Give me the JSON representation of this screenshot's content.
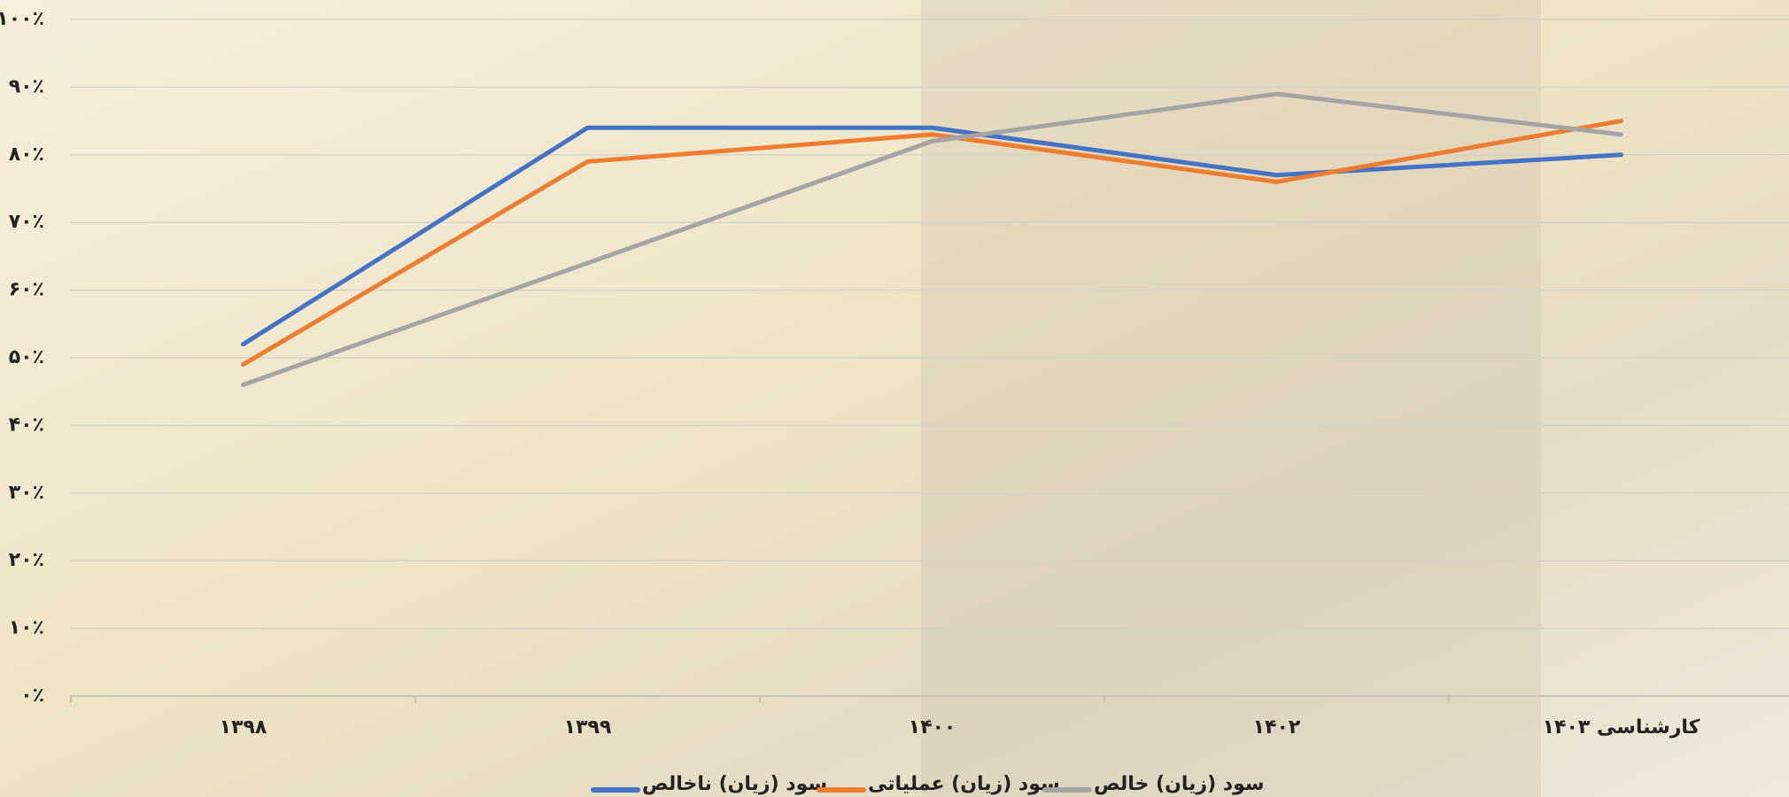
{
  "chart_data": {
    "type": "line",
    "categories": [
      "۱۳۹۸",
      "۱۳۹۹",
      "۱۴۰۰",
      "۱۴۰۲",
      "کارشناسی ۱۴۰۳"
    ],
    "series": [
      {
        "name": "سود (زیان) ناخالص",
        "color": "#4472c4",
        "values": [
          52,
          84,
          84,
          77,
          80
        ]
      },
      {
        "name": "سود (زیان) عملیاتی",
        "color": "#ed7d31",
        "values": [
          49,
          79,
          83,
          76,
          85
        ]
      },
      {
        "name": "سود (زیان) خالص",
        "color": "#a5a5a5",
        "values": [
          46,
          64,
          82,
          89,
          83
        ]
      }
    ],
    "ylim": [
      0,
      100
    ],
    "yticks": [
      {
        "value": 0,
        "label": "۰٪"
      },
      {
        "value": 10,
        "label": "۱۰٪"
      },
      {
        "value": 20,
        "label": "۲۰٪"
      },
      {
        "value": 30,
        "label": "۳۰٪"
      },
      {
        "value": 40,
        "label": "۴۰٪"
      },
      {
        "value": 50,
        "label": "۵۰٪"
      },
      {
        "value": 60,
        "label": "۶۰٪"
      },
      {
        "value": 70,
        "label": "۷۰٪"
      },
      {
        "value": 80,
        "label": "۸۰٪"
      },
      {
        "value": 90,
        "label": "۹۰٪"
      },
      {
        "value": 100,
        "label": "۱۰۰٪"
      }
    ],
    "grid": true,
    "legend": "bottom"
  }
}
